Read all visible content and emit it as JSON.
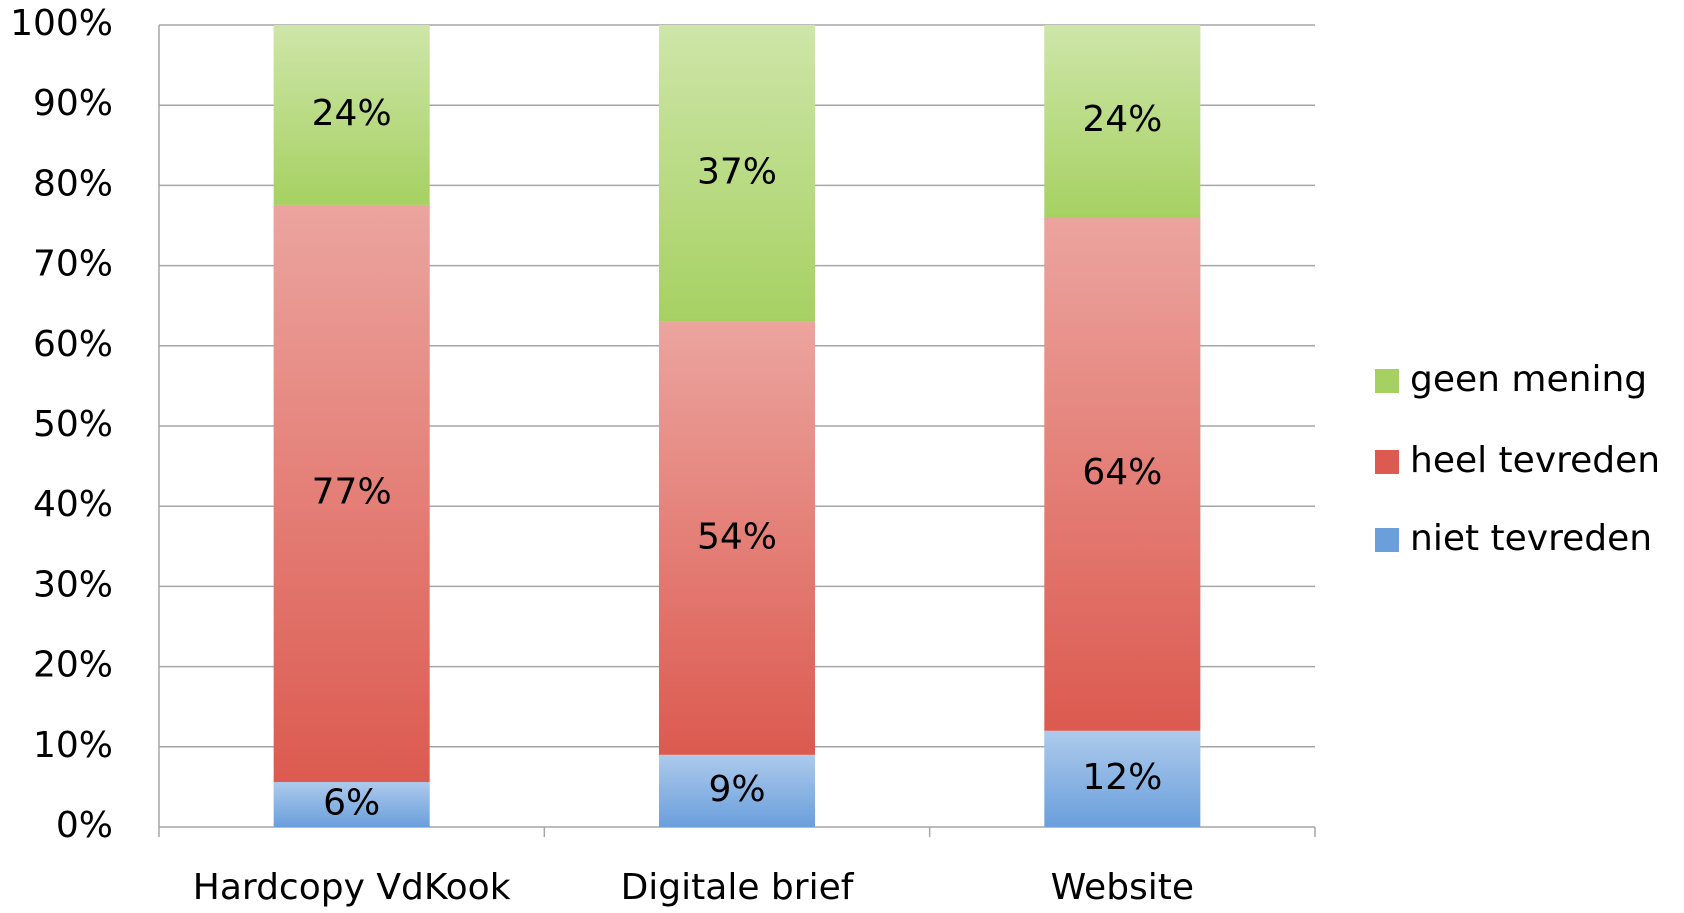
{
  "chart_data": {
    "type": "bar",
    "stacking": "percent",
    "categories": [
      "Hardcopy VdKook",
      "Digitale brief",
      "Website"
    ],
    "series": [
      {
        "name": "niet tevreden",
        "color": "#6a9fdc",
        "values": [
          6,
          9,
          12
        ],
        "value_labels": [
          "6%",
          "9%",
          "12%"
        ]
      },
      {
        "name": "heel tevreden",
        "color": "#dc5a50",
        "values": [
          77,
          54,
          64
        ],
        "value_labels": [
          "77%",
          "54%",
          "64%"
        ]
      },
      {
        "name": "geen mening",
        "color": "#a6d162",
        "values": [
          24,
          37,
          24
        ],
        "value_labels": [
          "24%",
          "37%",
          "24%"
        ]
      }
    ],
    "ylim": [
      0,
      100
    ],
    "yticks": [
      {
        "value": 0,
        "label": "0%"
      },
      {
        "value": 10,
        "label": "10%"
      },
      {
        "value": 20,
        "label": "20%"
      },
      {
        "value": 30,
        "label": "30%"
      },
      {
        "value": 40,
        "label": "40%"
      },
      {
        "value": 50,
        "label": "50%"
      },
      {
        "value": 60,
        "label": "60%"
      },
      {
        "value": 70,
        "label": "70%"
      },
      {
        "value": 80,
        "label": "80%"
      },
      {
        "value": 90,
        "label": "90%"
      },
      {
        "value": 100,
        "label": "100%"
      }
    ],
    "grid": true,
    "legend": "right"
  }
}
